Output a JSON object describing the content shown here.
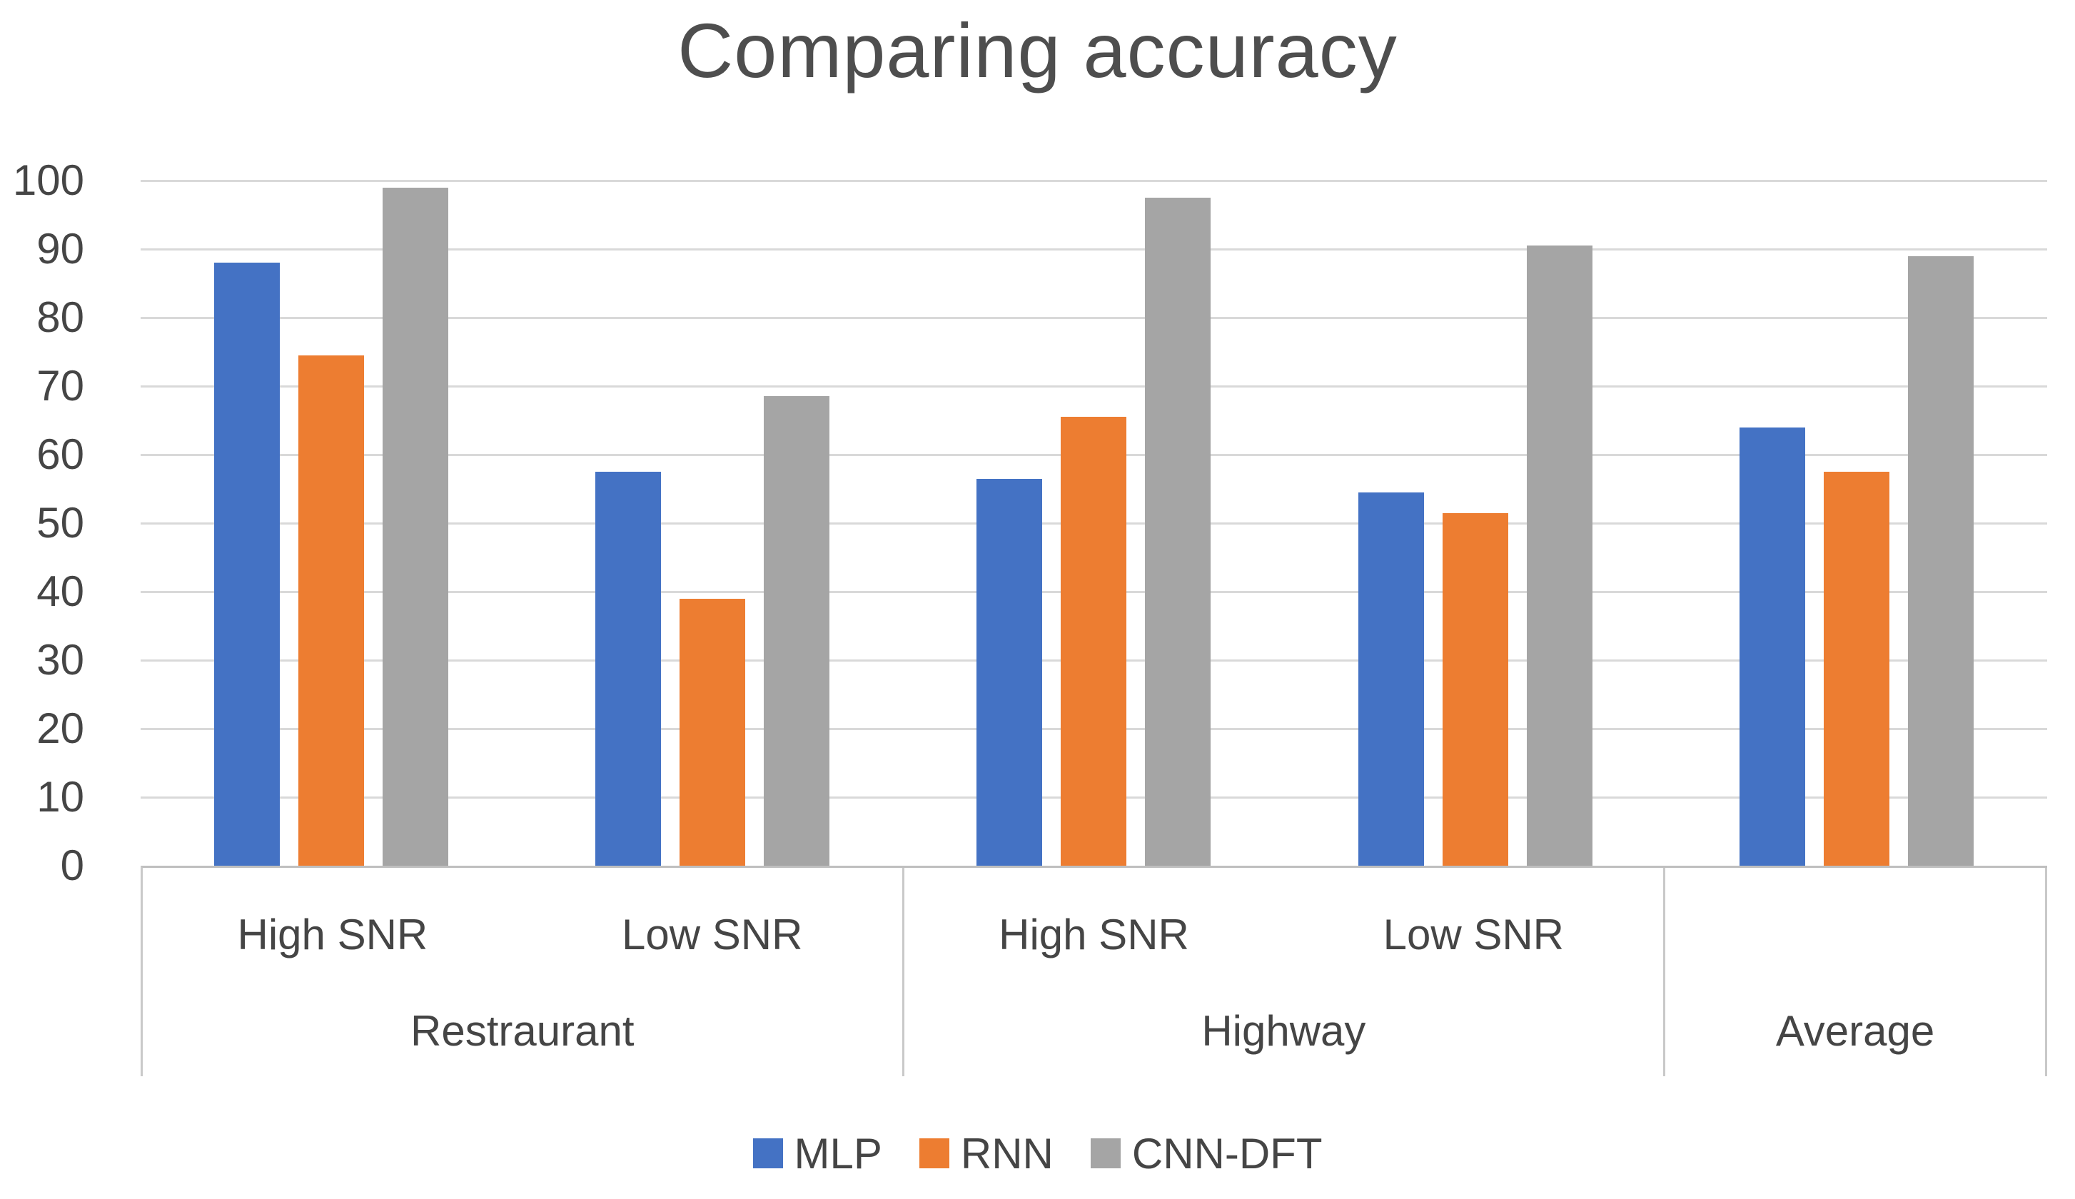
{
  "chart_data": {
    "type": "bar",
    "title": "Comparing accuracy",
    "ylabel": "",
    "xlabel": "",
    "ylim": [
      0,
      100
    ],
    "yticks": [
      0,
      10,
      20,
      30,
      40,
      50,
      60,
      70,
      80,
      90,
      100
    ],
    "grid": true,
    "legend_position": "bottom",
    "groups": [
      {
        "group": "Restraurant",
        "categories": [
          "High SNR",
          "Low SNR"
        ]
      },
      {
        "group": "Highway",
        "categories": [
          "High SNR",
          "Low SNR"
        ]
      },
      {
        "group": "Average",
        "categories": [
          ""
        ]
      }
    ],
    "x_categories": [
      "High SNR",
      "Low SNR",
      "High SNR",
      "Low SNR",
      ""
    ],
    "series": [
      {
        "name": "MLP",
        "color": "#4472C4",
        "values": [
          88,
          57.5,
          56.5,
          54.5,
          64
        ]
      },
      {
        "name": "RNN",
        "color": "#ED7D31",
        "values": [
          74.5,
          39,
          65.5,
          51.5,
          57.5
        ]
      },
      {
        "name": "CNN-DFT",
        "color": "#A5A5A5",
        "values": [
          99,
          68.5,
          97.5,
          90.5,
          89
        ]
      }
    ]
  },
  "style": {
    "background": "#ffffff",
    "title_color": "#4e4e4e",
    "text_color": "#454545",
    "gridline_color": "#d9d9d9",
    "axis_line_color": "#bfbfbf",
    "band_border_color": "#c9c9c9"
  }
}
